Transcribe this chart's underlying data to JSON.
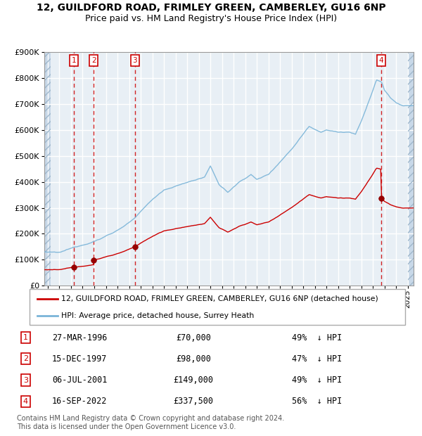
{
  "title1": "12, GUILDFORD ROAD, FRIMLEY GREEN, CAMBERLEY, GU16 6NP",
  "title2": "Price paid vs. HM Land Registry's House Price Index (HPI)",
  "ylim": [
    0,
    900000
  ],
  "yticks": [
    0,
    100000,
    200000,
    300000,
    400000,
    500000,
    600000,
    700000,
    800000,
    900000
  ],
  "ytick_labels": [
    "£0",
    "£100K",
    "£200K",
    "£300K",
    "£400K",
    "£500K",
    "£600K",
    "£700K",
    "£800K",
    "£900K"
  ],
  "xlim_start": 1993.7,
  "xlim_end": 2025.5,
  "transactions": [
    {
      "num": 1,
      "date": "27-MAR-1996",
      "year": 1996.24,
      "price": 70000,
      "pct": "49%",
      "dir": "↓"
    },
    {
      "num": 2,
      "date": "15-DEC-1997",
      "year": 1997.96,
      "price": 98000,
      "pct": "47%",
      "dir": "↓"
    },
    {
      "num": 3,
      "date": "06-JUL-2001",
      "year": 2001.51,
      "price": 149000,
      "pct": "49%",
      "dir": "↓"
    },
    {
      "num": 4,
      "date": "16-SEP-2022",
      "year": 2022.71,
      "price": 337500,
      "pct": "56%",
      "dir": "↓"
    }
  ],
  "hpi_color": "#7ab4d8",
  "price_color": "#cc0000",
  "vline_color": "#cc0000",
  "dot_color": "#990000",
  "box_color": "#cc0000",
  "background_plot": "#e8eff5",
  "grid_color": "#ffffff",
  "legend_label1": "12, GUILDFORD ROAD, FRIMLEY GREEN, CAMBERLEY, GU16 6NP (detached house)",
  "legend_label2": "HPI: Average price, detached house, Surrey Heath",
  "footer": "Contains HM Land Registry data © Crown copyright and database right 2024.\nThis data is licensed under the Open Government Licence v3.0."
}
